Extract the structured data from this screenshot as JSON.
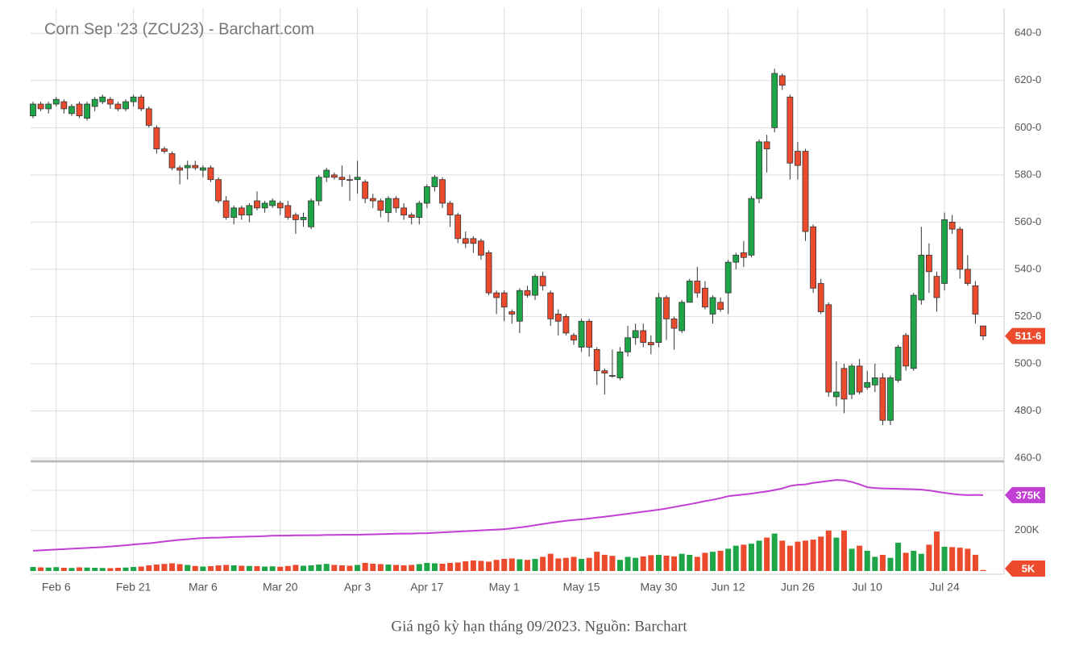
{
  "chart_data": {
    "type": "candlestick",
    "title": "Corn Sep '23 (ZCU23) - Barchart.com",
    "categories": [
      null,
      null,
      null,
      "Feb 6",
      null,
      null,
      null,
      null,
      null,
      null,
      null,
      null,
      null,
      "Feb 21",
      null,
      null,
      null,
      null,
      null,
      null,
      null,
      null,
      "Mar 6",
      null,
      null,
      null,
      null,
      null,
      null,
      null,
      null,
      null,
      "Mar 20",
      null,
      null,
      null,
      null,
      null,
      null,
      null,
      null,
      null,
      "Apr 3",
      null,
      null,
      null,
      null,
      null,
      null,
      null,
      null,
      "Apr 17",
      null,
      null,
      null,
      null,
      null,
      null,
      null,
      null,
      null,
      "May 1",
      null,
      null,
      null,
      null,
      null,
      null,
      null,
      null,
      null,
      "May 15",
      null,
      null,
      null,
      null,
      null,
      null,
      null,
      null,
      null,
      "May 30",
      null,
      null,
      null,
      null,
      null,
      null,
      null,
      null,
      "Jun 12",
      null,
      null,
      null,
      null,
      null,
      null,
      null,
      null,
      "Jun 26",
      null,
      null,
      null,
      null,
      null,
      null,
      null,
      null,
      "Jul 10",
      null,
      null,
      null,
      null,
      null,
      null,
      null,
      null,
      null,
      "Jul 24",
      null,
      null,
      null,
      null,
      null
    ],
    "open": [
      605,
      610,
      608,
      610,
      611,
      606,
      610,
      604,
      609,
      611,
      612,
      610,
      608,
      611,
      613,
      608,
      600,
      591,
      589,
      583,
      583,
      584,
      582,
      583,
      578,
      569,
      562,
      566,
      563,
      569,
      566,
      567,
      568,
      567,
      563,
      561,
      558,
      569,
      579,
      580,
      579,
      578,
      578,
      577,
      570,
      569,
      564,
      570,
      566,
      563,
      562,
      568,
      575,
      578,
      568,
      563,
      553,
      553,
      552,
      547,
      530,
      530,
      522,
      518,
      531,
      529,
      537,
      530,
      521,
      520,
      512,
      507,
      518,
      506,
      497,
      495,
      494,
      505,
      511,
      514,
      509,
      509,
      528,
      519,
      514,
      526,
      535,
      532,
      521,
      526,
      530,
      543,
      547,
      546,
      570,
      594,
      600,
      622,
      613,
      590,
      590,
      558,
      534,
      525,
      486,
      498,
      487,
      499,
      490,
      491,
      494,
      476,
      493,
      512,
      498,
      527,
      546,
      537,
      534,
      560,
      557,
      540,
      533,
      516
    ],
    "high": [
      611,
      611,
      611,
      613,
      612,
      610,
      611,
      611,
      613,
      614,
      613,
      611,
      612,
      614,
      614,
      609,
      601,
      592,
      590,
      584,
      586,
      586,
      584,
      584,
      579,
      571,
      567,
      567,
      568,
      573,
      569,
      570,
      569,
      569,
      564,
      564,
      570,
      580,
      583,
      581,
      584,
      580,
      586,
      578,
      572,
      570,
      571,
      571,
      568,
      564,
      569,
      576,
      580,
      579,
      569,
      564,
      556,
      554,
      553,
      548,
      531,
      531,
      523,
      532,
      533,
      538,
      539,
      531,
      523,
      521,
      513,
      519,
      519,
      507,
      498,
      506,
      507,
      516,
      517,
      517,
      512,
      530,
      529,
      520,
      527,
      536,
      541,
      535,
      529,
      528,
      544,
      547,
      552,
      571,
      595,
      597,
      625,
      623,
      614,
      594,
      591,
      559,
      536,
      526,
      501,
      500,
      500,
      502,
      497,
      500,
      496,
      495,
      508,
      513,
      530,
      558,
      551,
      539,
      564,
      563,
      558,
      546,
      535,
      516
    ],
    "low": [
      604,
      607,
      606,
      609,
      606,
      605,
      604,
      603,
      607,
      610,
      608,
      607,
      607,
      609,
      607,
      600,
      589,
      589,
      582,
      576,
      578,
      582,
      579,
      577,
      568,
      561,
      559,
      561,
      560,
      565,
      564,
      566,
      563,
      561,
      555,
      558,
      557,
      567,
      577,
      578,
      575,
      569,
      572,
      568,
      566,
      562,
      560,
      564,
      561,
      559,
      559,
      566,
      573,
      566,
      558,
      551,
      549,
      547,
      544,
      529,
      521,
      518,
      517,
      513,
      528,
      527,
      531,
      516,
      512,
      512,
      508,
      505,
      503,
      491,
      487,
      494,
      493,
      503,
      508,
      507,
      504,
      507,
      510,
      506,
      513,
      526,
      528,
      523,
      517,
      522,
      521,
      540,
      541,
      545,
      568,
      581,
      598,
      616,
      578,
      578,
      552,
      530,
      521,
      486,
      482,
      479,
      485,
      487,
      489,
      488,
      474,
      474,
      492,
      497,
      497,
      525,
      530,
      522,
      531,
      555,
      536,
      533,
      517,
      510
    ],
    "close": [
      610,
      608,
      610,
      612,
      608,
      609,
      605,
      610,
      612,
      613,
      610,
      608,
      611,
      613,
      608,
      601,
      591,
      590,
      583,
      582,
      584,
      583,
      583,
      578,
      569,
      562,
      566,
      563,
      567,
      566,
      568,
      569,
      566,
      562,
      561,
      562,
      569,
      579,
      582,
      579,
      578,
      577.75,
      579,
      570,
      569,
      565,
      570,
      566,
      563,
      562,
      568,
      575,
      579,
      568,
      563,
      553,
      551,
      551,
      546,
      530,
      528,
      524,
      521,
      531,
      529,
      537,
      533,
      519,
      518,
      513,
      510,
      518,
      507,
      497,
      496,
      494.75,
      505,
      511,
      514,
      509,
      508,
      528,
      519,
      515,
      526,
      535,
      530,
      524,
      528,
      523,
      543,
      546,
      545,
      570,
      594,
      591,
      623,
      618,
      585,
      584,
      556,
      532,
      522,
      488,
      488,
      485,
      499,
      488,
      492,
      494,
      476,
      494,
      507,
      499,
      529,
      546,
      539,
      528,
      561,
      557,
      540,
      534,
      521,
      511.75
    ],
    "last_close_label": "511-6",
    "up_color": "#1ea548",
    "down_color": "#ec4a2c",
    "ylim": [
      460,
      650
    ],
    "yticks": [
      {
        "value": 460,
        "label": "460-0"
      },
      {
        "value": 480,
        "label": "480-0"
      },
      {
        "value": 500,
        "label": "500-0"
      },
      {
        "value": 520,
        "label": "520-0"
      },
      {
        "value": 540,
        "label": "540-0"
      },
      {
        "value": 560,
        "label": "560-0"
      },
      {
        "value": 580,
        "label": "580-0"
      },
      {
        "value": 600,
        "label": "600-0"
      },
      {
        "value": 620,
        "label": "620-0"
      },
      {
        "value": 640,
        "label": "640-0"
      }
    ],
    "grid": true,
    "volume": {
      "type": "bar",
      "values": [
        20,
        18,
        17,
        19,
        16,
        15,
        18,
        17,
        16,
        15,
        14,
        16,
        17,
        20,
        22,
        28,
        32,
        35,
        38,
        34,
        30,
        25,
        22,
        24,
        28,
        30,
        28,
        26,
        25,
        24,
        22,
        23,
        21,
        25,
        30,
        26,
        28,
        32,
        35,
        30,
        28,
        26,
        30,
        40,
        36,
        34,
        32,
        30,
        28,
        30,
        34,
        40,
        38,
        36,
        40,
        42,
        48,
        52,
        50,
        46,
        55,
        60,
        62,
        58,
        55,
        60,
        70,
        85,
        62,
        65,
        70,
        60,
        65,
        95,
        80,
        75,
        55,
        70,
        65,
        72,
        78,
        80,
        76,
        72,
        85,
        80,
        70,
        90,
        95,
        100,
        110,
        125,
        130,
        135,
        150,
        165,
        185,
        150,
        125,
        145,
        150,
        155,
        170,
        200,
        165,
        200,
        110,
        125,
        100,
        70,
        80,
        65,
        140,
        90,
        100,
        85,
        130,
        195,
        120,
        118,
        115,
        110,
        80,
        5
      ],
      "last_label": "5K",
      "ylim": [
        0,
        530
      ],
      "yticks": [
        {
          "value": 200,
          "label": "200K"
        }
      ]
    },
    "open_interest": {
      "type": "line",
      "color": "#c13fd3",
      "values": [
        100,
        102,
        104,
        106,
        108,
        110,
        112,
        114,
        116,
        118,
        121,
        124,
        127,
        131,
        134,
        137,
        141,
        146,
        150,
        154,
        157,
        160,
        163,
        164,
        165,
        166,
        168,
        169,
        170,
        171,
        172,
        174,
        175,
        175,
        176,
        176,
        177,
        177,
        178,
        178,
        179,
        179,
        179,
        180,
        181,
        182,
        183,
        184,
        185,
        185,
        186,
        187,
        189,
        191,
        193,
        195,
        197,
        199,
        201,
        203,
        205,
        207,
        211,
        215,
        220,
        226,
        232,
        238,
        243,
        248,
        252,
        255,
        259,
        264,
        268,
        273,
        278,
        283,
        288,
        293,
        298,
        303,
        309,
        316,
        323,
        330,
        337,
        345,
        352,
        360,
        370,
        374,
        378,
        382,
        388,
        393,
        400,
        408,
        420,
        426,
        428,
        435,
        440,
        445,
        450,
        448,
        440,
        428,
        414,
        410,
        408,
        407,
        406,
        405,
        404,
        402,
        398,
        392,
        386,
        381,
        377,
        375,
        376,
        375
      ],
      "last_label": "375K"
    }
  },
  "caption": "Giá ngô kỳ hạn tháng 09/2023. Nguồn: Barchart"
}
